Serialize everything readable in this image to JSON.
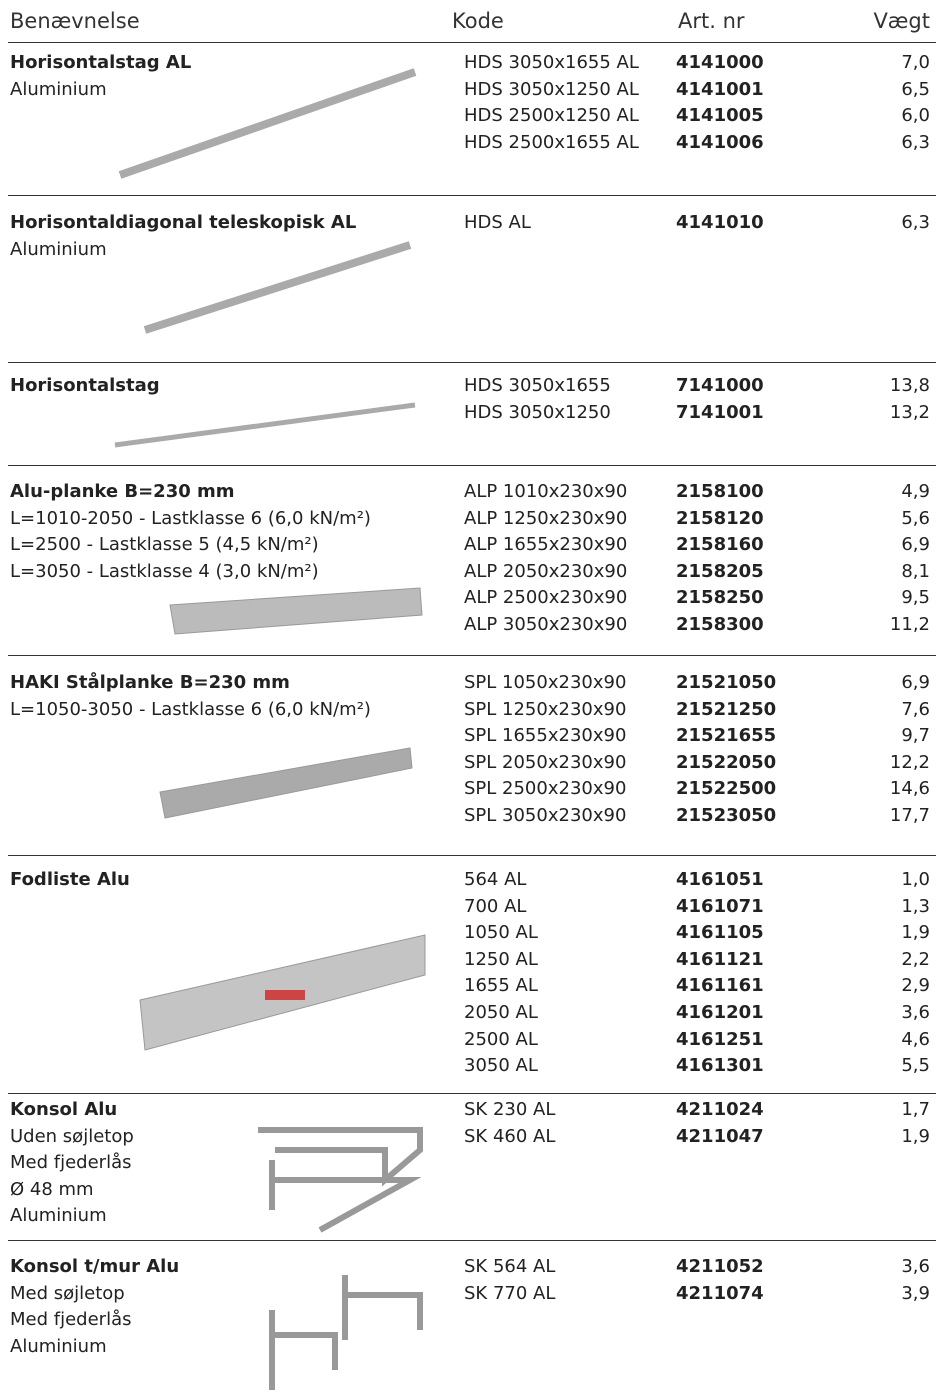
{
  "header": {
    "columns": [
      "Benævnelse",
      "Kode",
      "Art. nr",
      "Vægt"
    ]
  },
  "sections": [
    {
      "name": "Horisontalstag AL",
      "lines": [
        "Aluminium"
      ],
      "rows": [
        [
          "HDS 3050x1655 AL",
          "4141000",
          "7,0"
        ],
        [
          "HDS 3050x1250 AL",
          "4141001",
          "6,5"
        ],
        [
          "HDS 2500x1250 AL",
          "4141005",
          "6,0"
        ],
        [
          "HDS 2500x1655 AL",
          "4141006",
          "6,3"
        ]
      ]
    },
    {
      "name": "Horisontaldiagonal teleskopisk AL",
      "lines": [
        "Aluminium"
      ],
      "rows": [
        [
          "HDS AL",
          "4141010",
          "6,3"
        ]
      ]
    },
    {
      "name": "Horisontalstag",
      "lines": [],
      "rows": [
        [
          "HDS 3050x1655",
          "7141000",
          "13,8"
        ],
        [
          "HDS 3050x1250",
          "7141001",
          "13,2"
        ]
      ]
    },
    {
      "name": "Alu-planke  B=230 mm",
      "lines": [
        "L=1010-2050 - Lastklasse 6 (6,0 kN/m²)",
        "L=2500 - Lastklasse 5 (4,5 kN/m²)",
        "L=3050 - Lastklasse 4 (3,0 kN/m²)"
      ],
      "rows": [
        [
          "ALP 1010x230x90",
          "2158100",
          "4,9"
        ],
        [
          "ALP 1250x230x90",
          "2158120",
          "5,6"
        ],
        [
          "ALP 1655x230x90",
          "2158160",
          "6,9"
        ],
        [
          "ALP 2050x230x90",
          "2158205",
          "8,1"
        ],
        [
          "ALP 2500x230x90",
          "2158250",
          "9,5"
        ],
        [
          "ALP 3050x230x90",
          "2158300",
          "11,2"
        ]
      ]
    },
    {
      "name": "HAKI Stålplanke B=230 mm",
      "lines": [
        "L=1050-3050 - Lastklasse 6 (6,0 kN/m²)"
      ],
      "rows": [
        [
          "SPL 1050x230x90",
          "21521050",
          "6,9"
        ],
        [
          "SPL 1250x230x90",
          "21521250",
          "7,6"
        ],
        [
          "SPL 1655x230x90",
          "21521655",
          "9,7"
        ],
        [
          "SPL 2050x230x90",
          "21522050",
          "12,2"
        ],
        [
          "SPL 2500x230x90",
          "21522500",
          "14,6"
        ],
        [
          "SPL 3050x230x90",
          "21523050",
          "17,7"
        ]
      ]
    },
    {
      "name": "Fodliste Alu",
      "lines": [],
      "rows": [
        [
          "564 AL",
          "4161051",
          "1,0"
        ],
        [
          "700 AL",
          "4161071",
          "1,3"
        ],
        [
          "1050 AL",
          "4161105",
          "1,9"
        ],
        [
          "1250 AL",
          "4161121",
          "2,2"
        ],
        [
          "1655 AL",
          "4161161",
          "2,9"
        ],
        [
          "2050 AL",
          "4161201",
          "3,6"
        ],
        [
          "2500 AL",
          "4161251",
          "4,6"
        ],
        [
          "3050 AL",
          "4161301",
          "5,5"
        ]
      ]
    },
    {
      "name": "Konsol Alu",
      "lines": [
        "Uden søjletop",
        "Med fjederlås",
        "Ø 48 mm",
        "Aluminium"
      ],
      "rows": [
        [
          "SK 230 AL",
          "4211024",
          "1,7"
        ],
        [
          "SK 460 AL",
          "4211047",
          "1,9"
        ]
      ]
    },
    {
      "name": "Konsol t/mur Alu",
      "lines": [
        "Med søjletop",
        "Med fjederlås",
        "Aluminium"
      ],
      "rows": [
        [
          "SK 564 AL",
          "4211052",
          "3,6"
        ],
        [
          "SK 770 AL",
          "4211074",
          "3,9"
        ]
      ]
    }
  ]
}
